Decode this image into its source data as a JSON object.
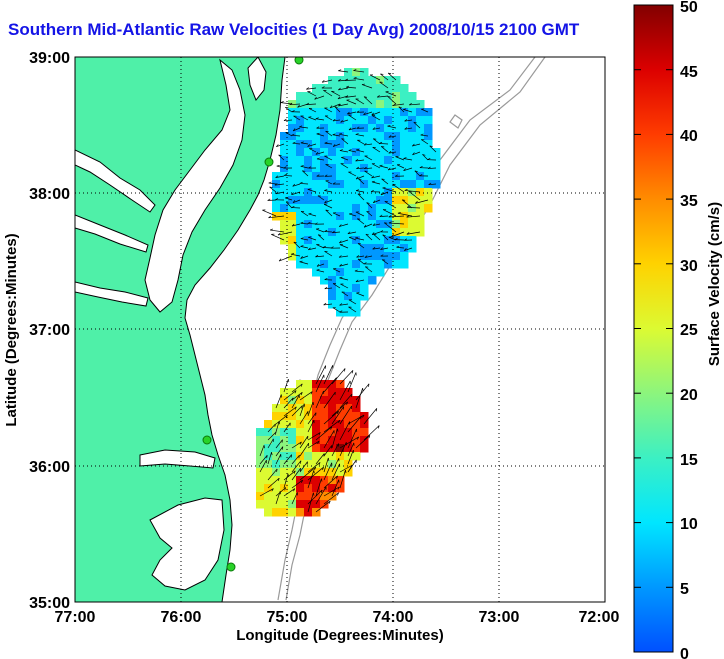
{
  "title": "Southern Mid-Atlantic Raw Velocities (1 Day Avg) 2008/10/15 2100 GMT",
  "x_axis": {
    "label": "Longitude (Degrees:Minutes)",
    "ticks": [
      "77:00",
      "76:00",
      "75:00",
      "74:00",
      "73:00",
      "72:00"
    ],
    "range": [
      -77,
      -72
    ]
  },
  "y_axis": {
    "label": "Latitude (Degrees:Minutes)",
    "ticks": [
      "39:00",
      "38:00",
      "37:00",
      "36:00",
      "35:00"
    ],
    "range": [
      35,
      39
    ]
  },
  "colorbar": {
    "label": "Surface Velocity (cm/s)",
    "ticks": [
      "50",
      "45",
      "40",
      "35",
      "30",
      "25",
      "20",
      "15",
      "10",
      "5",
      "0"
    ],
    "range": [
      0,
      50
    ],
    "colors": [
      "#0050ff",
      "#0098ff",
      "#00e6ff",
      "#3cf0c3",
      "#8cf57d",
      "#dcfa32",
      "#ffd200",
      "#ff8c00",
      "#ff3c00",
      "#dc0000",
      "#820000"
    ]
  },
  "colors": {
    "land": "#4ff0a8",
    "land_outline": "#000000",
    "bathymetry": "#9a9a9a",
    "grid": "#000000",
    "vector": "#000000",
    "title": "#1414e6",
    "station": "#28d228"
  },
  "map_features": {
    "grid": "dotted",
    "stations": 4
  }
}
